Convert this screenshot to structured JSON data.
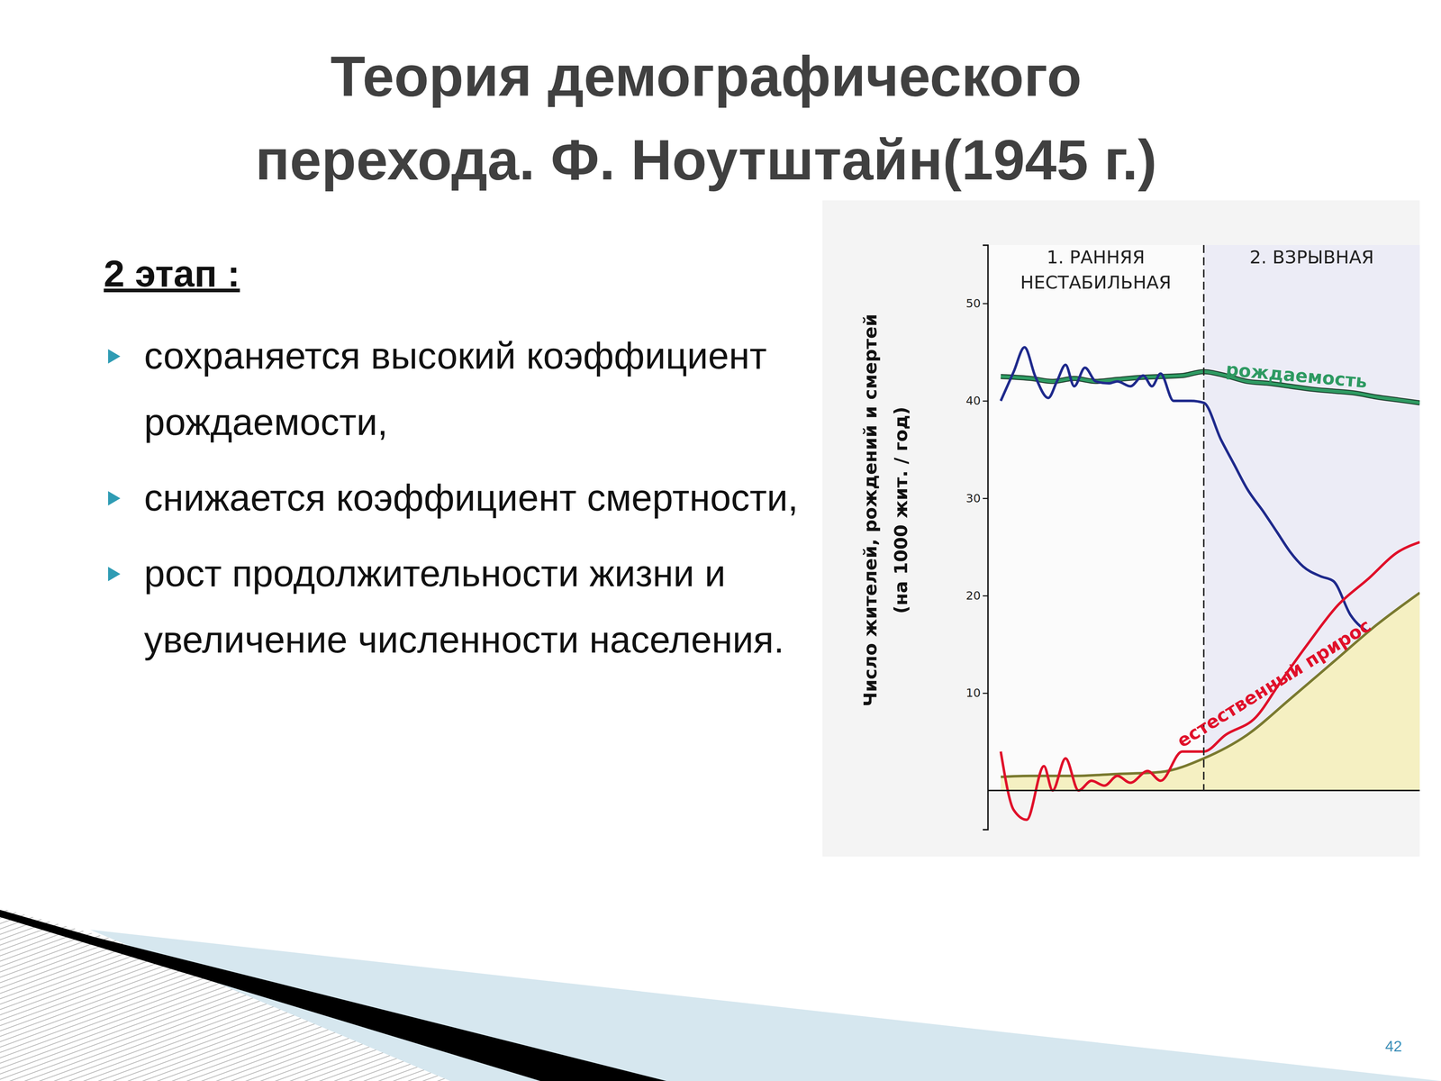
{
  "slide": {
    "title": [
      "Теория демографического",
      "перехода. Ф. Ноутштайн(1945 г.)"
    ],
    "heading": "2 этап :",
    "bullets": [
      "сохраняется высокий коэффициент рождаемости,",
      "снижается коэффициент смертности,",
      "рост продолжительности жизни и увеличение численности населения."
    ],
    "page_number": 42
  },
  "chart_data": {
    "type": "line",
    "ylabel": [
      "Число жителей, рождений и смертей",
      "(на 1000 жит. / год)"
    ],
    "xlim": [
      0,
      100
    ],
    "ylim": [
      -4,
      56
    ],
    "yticks": [
      10,
      20,
      30,
      40,
      50
    ],
    "tick_labels": "y",
    "phases": [
      {
        "label": [
          "1. РАННЯЯ",
          "НЕСТАБИЛЬНАЯ"
        ],
        "xlim": [
          0,
          50
        ]
      },
      {
        "label": [
          "2. ВЗРЫВНАЯ"
        ],
        "xlim": [
          50,
          100
        ]
      }
    ],
    "series": [
      {
        "name": "рождаемость",
        "color": "#2e9a62",
        "type": "line",
        "x": [
          3,
          10,
          15,
          20,
          25,
          30,
          35,
          40,
          45,
          50,
          55,
          60,
          65,
          70,
          75,
          80,
          85,
          90,
          95,
          100
        ],
        "values": [
          42.5,
          42.3,
          42.0,
          42.3,
          42.0,
          42.2,
          42.4,
          42.5,
          42.6,
          43.0,
          42.6,
          42.0,
          41.8,
          41.5,
          41.2,
          41.0,
          40.8,
          40.4,
          40.1,
          39.8
        ]
      },
      {
        "color": "#1f2a8c",
        "type": "line",
        "x": [
          3,
          6,
          8.5,
          11,
          14,
          16,
          18,
          20,
          22.5,
          25,
          28,
          30,
          33,
          36,
          38,
          40,
          43,
          47,
          50,
          54,
          57,
          60,
          64,
          67,
          70,
          73,
          77,
          80,
          84,
          89,
          95,
          100
        ],
        "values": [
          40,
          43,
          45.5,
          42.5,
          40.3,
          42,
          43.7,
          41.5,
          43.4,
          42,
          41.8,
          42,
          41.5,
          42.6,
          41.5,
          42.8,
          40,
          40,
          39.8,
          36,
          33.5,
          31,
          28.5,
          26.5,
          24.5,
          23,
          22,
          21.5,
          18,
          16,
          15,
          13.8
        ]
      },
      {
        "color": "#7a7a30",
        "type": "area",
        "x": [
          3,
          10,
          20,
          30,
          40,
          50,
          60,
          70,
          80,
          90,
          100
        ],
        "values": [
          1.4,
          1.5,
          1.5,
          1.7,
          1.9,
          3.3,
          5.7,
          9.4,
          13.2,
          17,
          20.3
        ]
      },
      {
        "name": "естественный прирос",
        "color": "#e0102a",
        "type": "line",
        "x": [
          3,
          6,
          9,
          13,
          15,
          18,
          21,
          24,
          27,
          30,
          33,
          37,
          40,
          45,
          50,
          55,
          62,
          68,
          74,
          81,
          88,
          95,
          100
        ],
        "values": [
          4,
          -2,
          -3,
          2.5,
          0,
          3.3,
          0,
          1,
          0.5,
          1.5,
          0.8,
          2,
          1,
          4,
          4,
          5.7,
          7.5,
          11.3,
          15,
          19,
          21.7,
          24.5,
          25.5
        ]
      }
    ]
  }
}
